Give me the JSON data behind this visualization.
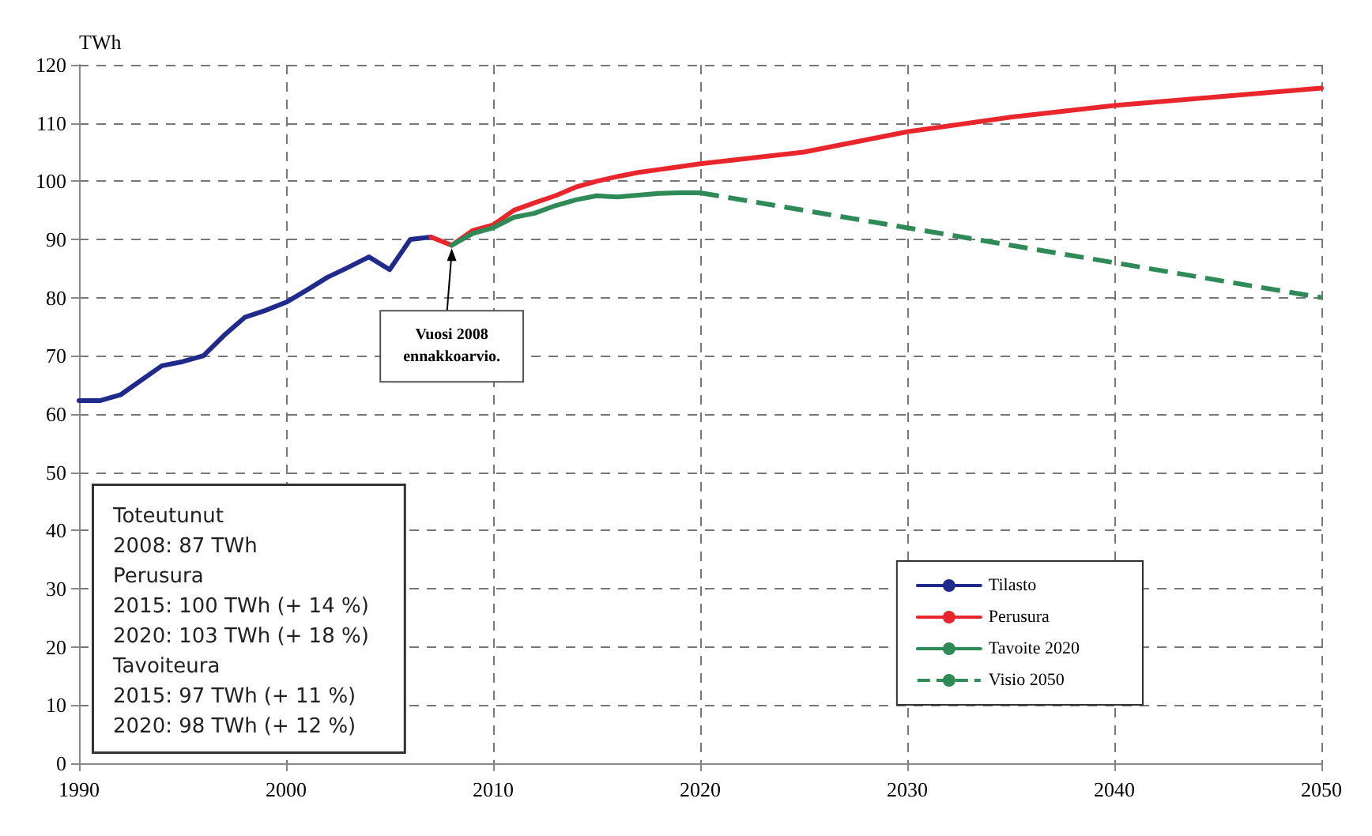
{
  "chart_data": {
    "type": "line",
    "ylabel": "TWh",
    "xlim": [
      1990,
      2050
    ],
    "xticks": [
      1990,
      2000,
      2010,
      2020,
      2030,
      2040,
      2050
    ],
    "ylim": [
      0,
      120
    ],
    "yticks": [
      0,
      10,
      20,
      30,
      40,
      50,
      60,
      70,
      80,
      90,
      100,
      110,
      120
    ],
    "grid": true,
    "legend": "bottom right",
    "marker": "none",
    "series": [
      {
        "name": "Tilasto",
        "color": "#1f2a8c",
        "x": [
          1990,
          1991,
          1992,
          1993,
          1994,
          1995,
          1996,
          1997,
          1998,
          1999,
          2000,
          2001,
          2002,
          2003,
          2004,
          2005,
          2006,
          2007
        ],
        "values": [
          62.3,
          62.3,
          63.3,
          65.8,
          68.3,
          69,
          70,
          73.5,
          76.6,
          77.8,
          79.2,
          81.3,
          83.5,
          85.2,
          87,
          84.8,
          90,
          90.4
        ]
      },
      {
        "name": "Perusura",
        "color": "#e8262b",
        "x": [
          2007,
          2008,
          2009,
          2010,
          2011,
          2012,
          2013,
          2014,
          2015,
          2016,
          2017,
          2018,
          2019,
          2020,
          2025,
          2030,
          2035,
          2040,
          2045,
          2050
        ],
        "values": [
          90.4,
          89,
          91.5,
          92.5,
          95,
          96.3,
          97.5,
          99,
          100,
          100.8,
          101.5,
          102,
          102.5,
          103,
          105,
          108.5,
          111,
          113,
          114.5,
          116
        ]
      },
      {
        "name": "Tavoite 2020",
        "color": "#2e8b57",
        "x": [
          2008,
          2009,
          2010,
          2011,
          2012,
          2013,
          2014,
          2015,
          2016,
          2017,
          2018,
          2019,
          2020
        ],
        "values": [
          89,
          91,
          92,
          93.8,
          94.5,
          95.8,
          96.8,
          97.5,
          97.3,
          97.6,
          97.9,
          98,
          98
        ]
      },
      {
        "name": "Visio 2050",
        "color": "#2e8b57",
        "line_style": "dashed",
        "x": [
          2020,
          2050
        ],
        "values": [
          98,
          80
        ]
      }
    ],
    "annotations": [
      {
        "text": "Vuosi 2008\nennakkoarvio.",
        "x": 2008,
        "y": 89
      },
      "Toteutunut\n2008: 87 TWh\nPerusura\n2015: 100 TWh (+ 14 %)\n2020: 103 TWh (+ 18 %)\nTavoiteura\n2015: 97 TWh (+ 11 %)\n2020: 98 TWh (+ 12 %)"
    ]
  }
}
